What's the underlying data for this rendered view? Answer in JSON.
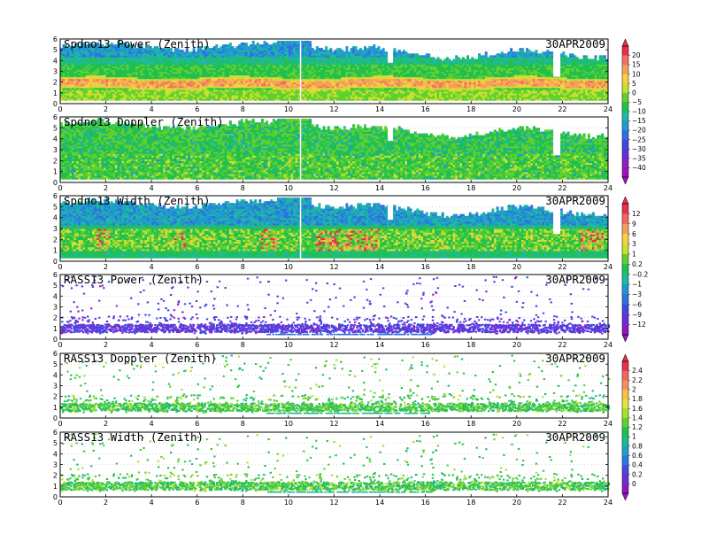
{
  "chart_data": [
    {
      "type": "heatmap",
      "title": "Spdno13 Power (Zenith)",
      "date": "30APR2009",
      "xlim": [
        0,
        24
      ],
      "ylim": [
        0,
        6
      ],
      "xticks": [
        0,
        2,
        4,
        6,
        8,
        10,
        12,
        14,
        16,
        18,
        20,
        22,
        24
      ],
      "yticks": [
        0,
        1,
        2,
        3,
        4,
        5,
        6
      ],
      "gaps_x": [
        10.5,
        14.35,
        21.6
      ],
      "colorbar": 0
    },
    {
      "type": "heatmap",
      "title": "Spdno13 Doppler (Zenith)",
      "date": "",
      "xlim": [
        0,
        24
      ],
      "ylim": [
        0,
        6
      ],
      "xticks": [
        0,
        2,
        4,
        6,
        8,
        10,
        12,
        14,
        16,
        18,
        20,
        22,
        24
      ],
      "yticks": [
        0,
        1,
        2,
        3,
        4,
        5,
        6
      ],
      "gaps_x": [
        10.5,
        14.35,
        21.6
      ],
      "colorbar": 0
    },
    {
      "type": "heatmap",
      "title": "Spdno13 Width (Zenith)",
      "date": "30APR2009",
      "xlim": [
        0,
        24
      ],
      "ylim": [
        0,
        6
      ],
      "xticks": [
        0,
        2,
        4,
        6,
        8,
        10,
        12,
        14,
        16,
        18,
        20,
        22,
        24
      ],
      "yticks": [
        0,
        1,
        2,
        3,
        4,
        5,
        6
      ],
      "gaps_x": [
        10.5,
        14.35,
        21.6
      ],
      "colorbar": 1
    },
    {
      "type": "heatmap",
      "title": "RASS13 Power (Zenith)",
      "date": "30APR2009",
      "xlim": [
        0,
        24
      ],
      "ylim": [
        0,
        6
      ],
      "xticks": [
        0,
        2,
        4,
        6,
        8,
        10,
        12,
        14,
        16,
        18,
        20,
        22,
        24
      ],
      "yticks": [
        0,
        1,
        2,
        3,
        4,
        5,
        6
      ],
      "colorbar": 1
    },
    {
      "type": "heatmap",
      "title": "RASS13 Doppler (Zenith)",
      "date": "30APR2009",
      "xlim": [
        0,
        24
      ],
      "ylim": [
        0,
        6
      ],
      "xticks": [
        0,
        2,
        4,
        6,
        8,
        10,
        12,
        14,
        16,
        18,
        20,
        22,
        24
      ],
      "yticks": [
        0,
        1,
        2,
        3,
        4,
        5,
        6
      ],
      "colorbar": 2
    },
    {
      "type": "heatmap",
      "title": "RASS13 Width (Zenith)",
      "date": "30APR2009",
      "xlim": [
        0,
        24
      ],
      "ylim": [
        0,
        6
      ],
      "xticks": [
        0,
        2,
        4,
        6,
        8,
        10,
        12,
        14,
        16,
        18,
        20,
        22,
        24
      ],
      "yticks": [
        0,
        1,
        2,
        3,
        4,
        5,
        6
      ],
      "colorbar": 2
    }
  ],
  "colorbars": [
    {
      "labels": [
        "20",
        "15",
        "10",
        "5",
        "0",
        "−5",
        "−10",
        "−15",
        "−20",
        "−25",
        "−30",
        "−35",
        "−40"
      ],
      "colors": [
        "#e8304a",
        "#f07060",
        "#f5a05a",
        "#f8d040",
        "#c8e030",
        "#60d030",
        "#20c050",
        "#20b8a0",
        "#2098d0",
        "#3070e0",
        "#4048e0",
        "#6030d8",
        "#8a20c8",
        "#a010b8"
      ]
    },
    {
      "labels": [
        "12",
        "9",
        "6",
        "3",
        "1",
        "0.2",
        "−0.2",
        "−1",
        "−3",
        "−6",
        "−9",
        "−12"
      ],
      "colors": [
        "#e8304a",
        "#f06860",
        "#f5a05a",
        "#f8d040",
        "#c8e030",
        "#60d030",
        "#20c050",
        "#20b8a0",
        "#2098d0",
        "#3070e0",
        "#4048e0",
        "#6030d8",
        "#9018c0"
      ]
    },
    {
      "labels": [
        "2.4",
        "2.2",
        "2",
        "1.8",
        "1.6",
        "1.4",
        "1.2",
        "1",
        "0.8",
        "0.6",
        "0.4",
        "0.2",
        "0"
      ],
      "colors": [
        "#e8304a",
        "#f06860",
        "#f5905a",
        "#f8c040",
        "#e8e040",
        "#a8e030",
        "#60d030",
        "#20c050",
        "#20b890",
        "#20a0c8",
        "#2878e0",
        "#4848e0",
        "#6a30d8",
        "#9018c0"
      ]
    }
  ],
  "palette": {
    "power_low": "#4048e0",
    "power_mid": "#20c050",
    "power_high": "#f5a05a",
    "background_cyan": "#20b8a0",
    "rass_power": "#6040e0",
    "rass_doppler": "#30c840",
    "gap_white": "#ffffff"
  }
}
